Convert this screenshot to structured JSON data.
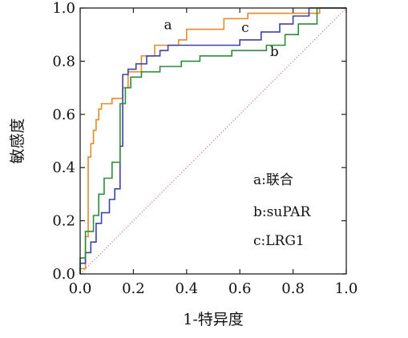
{
  "chart_data": {
    "type": "line",
    "title": "",
    "xlabel": "1-特异度",
    "ylabel": "敏感度",
    "xlim": [
      0,
      1
    ],
    "ylim": [
      0,
      1
    ],
    "xticks": [
      "0.0",
      "0.2",
      "0.4",
      "0.6",
      "0.8",
      "1.0"
    ],
    "yticks": [
      "0.0",
      "0.2",
      "0.4",
      "0.6",
      "0.8",
      "1.0"
    ],
    "grid": false,
    "legend_position": "bottom-right",
    "legend": [
      "a:联合",
      "b:suPAR",
      "c:LRG1"
    ],
    "reference_line": {
      "style": "dotted",
      "color": "#c98080",
      "x": [
        0,
        1
      ],
      "y": [
        0,
        1
      ]
    },
    "series": [
      {
        "name": "a",
        "color": "#e8892a",
        "label_at": [
          0.33,
          0.92
        ],
        "x": [
          0,
          0,
          0.02,
          0.02,
          0.03,
          0.03,
          0.04,
          0.04,
          0.05,
          0.05,
          0.06,
          0.06,
          0.07,
          0.07,
          0.08,
          0.08,
          0.12,
          0.12,
          0.16,
          0.16,
          0.18,
          0.18,
          0.23,
          0.23,
          0.28,
          0.28,
          0.37,
          0.37,
          0.4,
          0.4,
          0.54,
          0.54,
          0.6,
          0.6,
          0.63,
          0.63,
          0.9,
          0.9,
          1.0
        ],
        "y": [
          0,
          0.02,
          0.02,
          0.14,
          0.14,
          0.44,
          0.44,
          0.49,
          0.49,
          0.54,
          0.54,
          0.58,
          0.58,
          0.62,
          0.62,
          0.64,
          0.64,
          0.66,
          0.66,
          0.7,
          0.7,
          0.76,
          0.76,
          0.82,
          0.82,
          0.86,
          0.86,
          0.88,
          0.88,
          0.92,
          0.92,
          0.96,
          0.96,
          0.96,
          0.96,
          0.98,
          0.98,
          1.0,
          1.0
        ]
      },
      {
        "name": "b",
        "color": "#3c43a6",
        "label_at": [
          0.73,
          0.82
        ],
        "x": [
          0,
          0,
          0.02,
          0.02,
          0.04,
          0.04,
          0.06,
          0.06,
          0.08,
          0.08,
          0.11,
          0.11,
          0.13,
          0.13,
          0.15,
          0.15,
          0.16,
          0.16,
          0.18,
          0.18,
          0.21,
          0.21,
          0.25,
          0.25,
          0.3,
          0.3,
          0.33,
          0.33,
          0.6,
          0.6,
          0.68,
          0.68,
          0.75,
          0.75,
          0.8,
          0.8,
          0.86,
          0.86,
          1.0
        ],
        "y": [
          0,
          0.04,
          0.04,
          0.08,
          0.08,
          0.12,
          0.12,
          0.19,
          0.19,
          0.23,
          0.23,
          0.28,
          0.28,
          0.32,
          0.32,
          0.48,
          0.48,
          0.75,
          0.75,
          0.77,
          0.77,
          0.79,
          0.79,
          0.82,
          0.82,
          0.84,
          0.84,
          0.86,
          0.86,
          0.88,
          0.88,
          0.91,
          0.91,
          0.94,
          0.94,
          0.97,
          0.97,
          1.0,
          1.0
        ]
      },
      {
        "name": "c",
        "color": "#2f8a3a",
        "label_at": [
          0.62,
          0.91
        ],
        "x": [
          0,
          0,
          0.02,
          0.02,
          0.05,
          0.05,
          0.07,
          0.07,
          0.09,
          0.09,
          0.12,
          0.12,
          0.15,
          0.15,
          0.17,
          0.17,
          0.19,
          0.19,
          0.23,
          0.23,
          0.3,
          0.3,
          0.38,
          0.38,
          0.45,
          0.45,
          0.57,
          0.57,
          0.7,
          0.7,
          0.77,
          0.77,
          0.82,
          0.82,
          0.89,
          0.89,
          1.0
        ],
        "y": [
          0,
          0.06,
          0.06,
          0.16,
          0.16,
          0.22,
          0.22,
          0.3,
          0.3,
          0.36,
          0.36,
          0.42,
          0.42,
          0.64,
          0.64,
          0.7,
          0.7,
          0.74,
          0.74,
          0.76,
          0.76,
          0.78,
          0.78,
          0.8,
          0.8,
          0.82,
          0.82,
          0.84,
          0.84,
          0.86,
          0.86,
          0.9,
          0.9,
          0.94,
          0.94,
          1.0,
          1.0
        ]
      }
    ]
  }
}
